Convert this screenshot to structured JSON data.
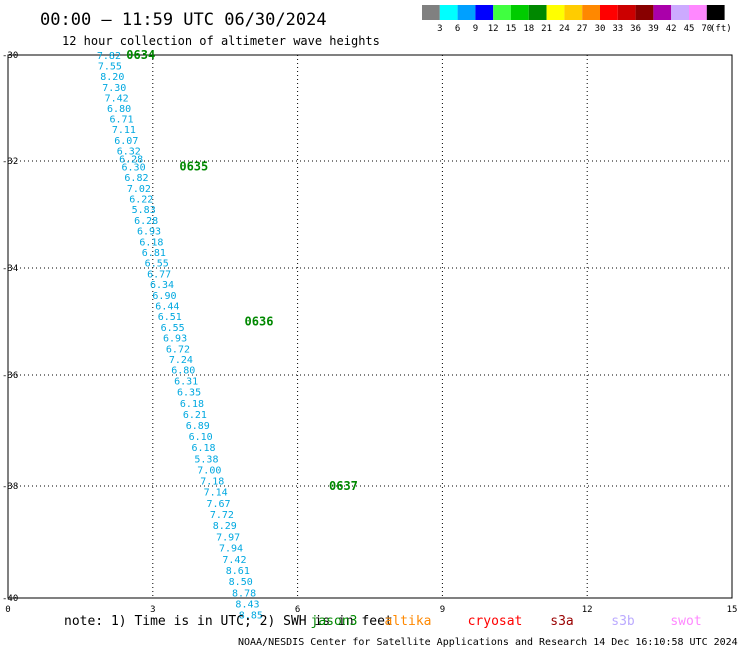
{
  "header": {
    "title": "00:00 — 11:59 UTC 06/30/2024",
    "subtitle": "12 hour collection of altimeter wave heights"
  },
  "legend": {
    "unit": "(ft)",
    "bins": [
      {
        "label": "3",
        "color": "#808080"
      },
      {
        "label": "6",
        "color": "#00ffff"
      },
      {
        "label": "9",
        "color": "#00a0ff"
      },
      {
        "label": "12",
        "color": "#0000ff"
      },
      {
        "label": "15",
        "color": "#40ff40"
      },
      {
        "label": "18",
        "color": "#00cc00"
      },
      {
        "label": "21",
        "color": "#008800"
      },
      {
        "label": "24",
        "color": "#ffff00"
      },
      {
        "label": "27",
        "color": "#ffcc00"
      },
      {
        "label": "30",
        "color": "#ff8800"
      },
      {
        "label": "33",
        "color": "#ff0000"
      },
      {
        "label": "36",
        "color": "#cc0000"
      },
      {
        "label": "39",
        "color": "#880000"
      },
      {
        "label": "42",
        "color": "#aa00aa"
      },
      {
        "label": "45",
        "color": "#ccaaff"
      },
      {
        "label": "70",
        "color": "#ff88ff"
      },
      {
        "label": "",
        "color": "#000000"
      }
    ]
  },
  "map": {
    "lon_ticks": [
      "0",
      "3",
      "6",
      "9",
      "12",
      "15"
    ],
    "lat_ticks": [
      "-30",
      "-32",
      "-34",
      "-36",
      "-38",
      "-40"
    ],
    "grid_color": "#000000"
  },
  "track": {
    "value_color": "#00a8e0",
    "time_color": "#008800",
    "points": [
      {
        "lon": 2.05,
        "lat": -30.0,
        "swh": "7.82"
      },
      {
        "lon": 2.07,
        "lat": -30.2,
        "swh": "7.55"
      },
      {
        "lon": 2.12,
        "lat": -30.4,
        "swh": "8.20"
      },
      {
        "lon": 2.16,
        "lat": -30.6,
        "swh": "7.30"
      },
      {
        "lon": 2.21,
        "lat": -30.8,
        "swh": "7.42"
      },
      {
        "lon": 2.26,
        "lat": -31.0,
        "swh": "6.80"
      },
      {
        "lon": 2.31,
        "lat": -31.2,
        "swh": "6.71"
      },
      {
        "lon": 2.36,
        "lat": -31.4,
        "swh": "7.11"
      },
      {
        "lon": 2.41,
        "lat": -31.6,
        "swh": "6.07"
      },
      {
        "lon": 2.46,
        "lat": -31.8,
        "swh": "6.32"
      },
      {
        "lon": 2.51,
        "lat": -31.95,
        "swh": "6.28"
      },
      {
        "lon": 2.56,
        "lat": -32.1,
        "swh": "6.30"
      },
      {
        "lon": 2.62,
        "lat": -32.3,
        "swh": "6.82"
      },
      {
        "lon": 2.67,
        "lat": -32.5,
        "swh": "7.02"
      },
      {
        "lon": 2.72,
        "lat": -32.7,
        "swh": "6.22"
      },
      {
        "lon": 2.77,
        "lat": -32.9,
        "swh": "5.83"
      },
      {
        "lon": 2.82,
        "lat": -33.1,
        "swh": "6.28"
      },
      {
        "lon": 2.88,
        "lat": -33.3,
        "swh": "6.93"
      },
      {
        "lon": 2.93,
        "lat": -33.5,
        "swh": "6.18"
      },
      {
        "lon": 2.98,
        "lat": -33.7,
        "swh": "6.81"
      },
      {
        "lon": 3.04,
        "lat": -33.9,
        "swh": "6.55"
      },
      {
        "lon": 3.09,
        "lat": -34.1,
        "swh": "6.77"
      },
      {
        "lon": 3.15,
        "lat": -34.3,
        "swh": "6.34"
      },
      {
        "lon": 3.2,
        "lat": -34.5,
        "swh": "6.90"
      },
      {
        "lon": 3.26,
        "lat": -34.7,
        "swh": "6.44"
      },
      {
        "lon": 3.31,
        "lat": -34.9,
        "swh": "6.51"
      },
      {
        "lon": 3.37,
        "lat": -35.1,
        "swh": "6.55"
      },
      {
        "lon": 3.42,
        "lat": -35.3,
        "swh": "6.93"
      },
      {
        "lon": 3.48,
        "lat": -35.5,
        "swh": "6.72"
      },
      {
        "lon": 3.54,
        "lat": -35.7,
        "swh": "7.24"
      },
      {
        "lon": 3.59,
        "lat": -35.9,
        "swh": "6.80"
      },
      {
        "lon": 3.65,
        "lat": -36.1,
        "swh": "6.31"
      },
      {
        "lon": 3.71,
        "lat": -36.3,
        "swh": "6.35"
      },
      {
        "lon": 3.77,
        "lat": -36.5,
        "swh": "6.18"
      },
      {
        "lon": 3.83,
        "lat": -36.7,
        "swh": "6.21"
      },
      {
        "lon": 3.89,
        "lat": -36.9,
        "swh": "6.89"
      },
      {
        "lon": 3.95,
        "lat": -37.1,
        "swh": "6.10"
      },
      {
        "lon": 4.01,
        "lat": -37.3,
        "swh": "6.18"
      },
      {
        "lon": 4.07,
        "lat": -37.5,
        "swh": "5.38"
      },
      {
        "lon": 4.13,
        "lat": -37.7,
        "swh": "7.00"
      },
      {
        "lon": 4.19,
        "lat": -37.9,
        "swh": "7.18"
      },
      {
        "lon": 4.26,
        "lat": -38.1,
        "swh": "7.14"
      },
      {
        "lon": 4.32,
        "lat": -38.3,
        "swh": "7.67"
      },
      {
        "lon": 4.39,
        "lat": -38.5,
        "swh": "7.72"
      },
      {
        "lon": 4.45,
        "lat": -38.7,
        "swh": "8.29"
      },
      {
        "lon": 4.52,
        "lat": -38.9,
        "swh": "7.97"
      },
      {
        "lon": 4.58,
        "lat": -39.1,
        "swh": "7.94"
      },
      {
        "lon": 4.65,
        "lat": -39.3,
        "swh": "7.42"
      },
      {
        "lon": 4.72,
        "lat": -39.5,
        "swh": "8.61"
      },
      {
        "lon": 4.78,
        "lat": -39.7,
        "swh": "8.50"
      },
      {
        "lon": 4.85,
        "lat": -39.9,
        "swh": "8.78"
      },
      {
        "lon": 4.92,
        "lat": -40.1,
        "swh": "8.43"
      },
      {
        "lon": 4.99,
        "lat": -40.3,
        "swh": "8.85"
      }
    ],
    "time_labels": [
      {
        "text": "0634",
        "lon": 2.75,
        "lat": -30.0
      },
      {
        "text": "0635",
        "lon": 3.85,
        "lat": -32.1
      },
      {
        "text": "0636",
        "lon": 5.2,
        "lat": -35.0
      },
      {
        "text": "0637",
        "lon": 6.95,
        "lat": -38.0
      }
    ]
  },
  "footer": {
    "note": "note:  1) Time is in UTC; 2) SWH is in feet",
    "satellites": [
      {
        "name": "jason3",
        "color": "#008800"
      },
      {
        "name": "altika",
        "color": "#ff8800"
      },
      {
        "name": "cryosat",
        "color": "#ff0000"
      },
      {
        "name": "s3a",
        "color": "#990000"
      },
      {
        "name": "s3b",
        "color": "#bbaaff"
      },
      {
        "name": "swot",
        "color": "#ff88ff"
      }
    ],
    "credit": "NOAA/NESDIS Center for Satellite Applications and Research    14 Dec 16:10:58 UTC 2024"
  }
}
